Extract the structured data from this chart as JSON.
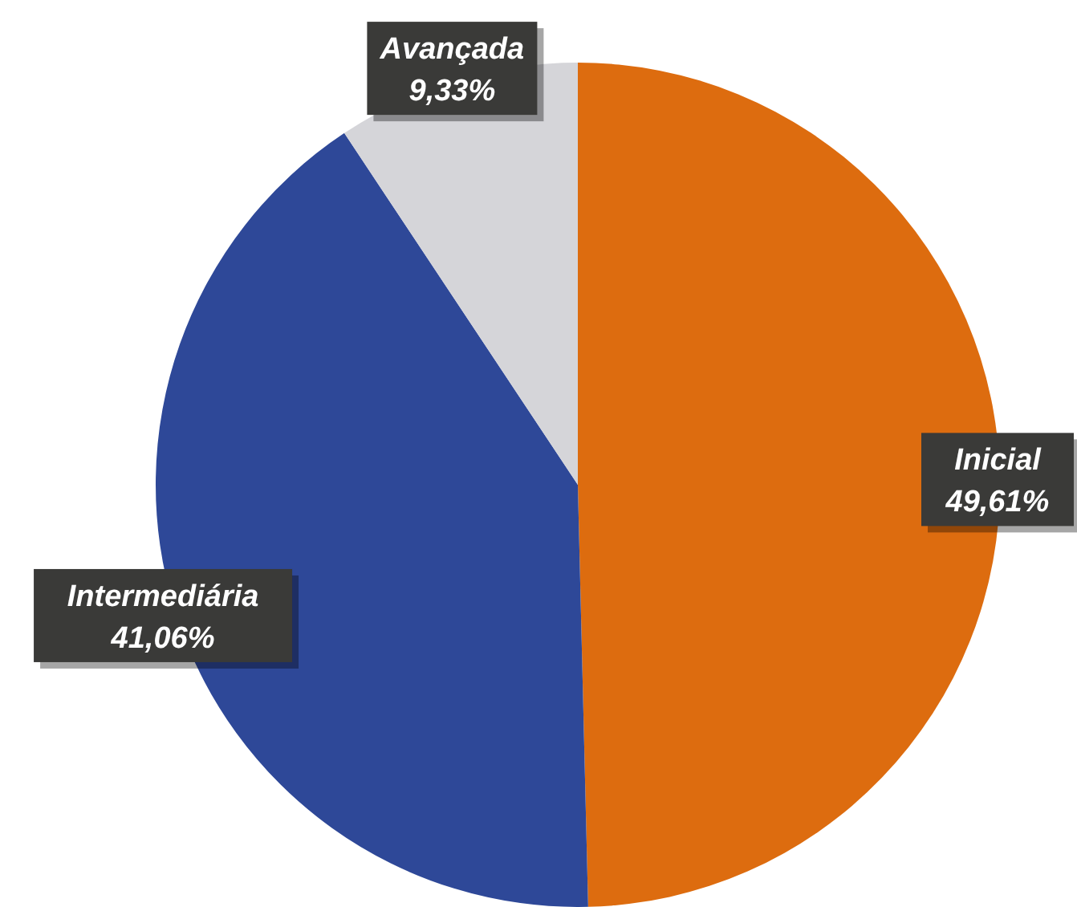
{
  "chart_data": {
    "type": "pie",
    "categories": [
      "Inicial",
      "Intermediária",
      "Avançada"
    ],
    "values": [
      49.61,
      41.06,
      9.33
    ],
    "colors": [
      "#dd6c0f",
      "#2e4898",
      "#d5d5d9"
    ],
    "value_labels": [
      "49,61%",
      "41,06%",
      "9,33%"
    ]
  }
}
